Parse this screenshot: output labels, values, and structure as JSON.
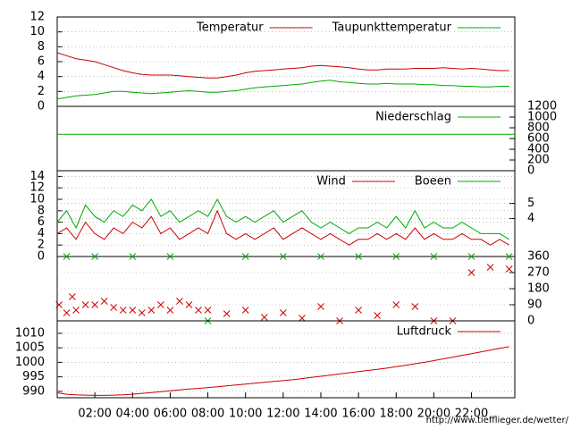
{
  "credit": "http://www.tiefflieger.de/wetter/",
  "chart_data": [
    {
      "type": "line",
      "xlim": [
        0,
        24.3
      ],
      "ylim": [
        0,
        12
      ],
      "yticks": [
        0,
        2,
        4,
        6,
        8,
        10,
        12
      ],
      "grid": true,
      "x": [
        0,
        0.5,
        1,
        1.5,
        2,
        2.5,
        3,
        3.5,
        4,
        4.5,
        5,
        5.5,
        6,
        6.5,
        7,
        7.5,
        8,
        8.5,
        9,
        9.5,
        10,
        10.5,
        11,
        11.5,
        12,
        12.5,
        13,
        13.5,
        14,
        14.5,
        15,
        15.5,
        16,
        16.5,
        17,
        17.5,
        18,
        18.5,
        19,
        19.5,
        20,
        20.5,
        21,
        21.5,
        22,
        22.5,
        23,
        23.5,
        24
      ],
      "series": [
        {
          "name": "Temperatur",
          "color": "#cc0000",
          "values": [
            7.2,
            6.8,
            6.4,
            6.2,
            6.0,
            5.6,
            5.2,
            4.8,
            4.5,
            4.3,
            4.2,
            4.2,
            4.2,
            4.1,
            4.0,
            3.9,
            3.8,
            3.8,
            4.0,
            4.2,
            4.5,
            4.7,
            4.8,
            4.9,
            5.0,
            5.1,
            5.2,
            5.4,
            5.5,
            5.4,
            5.3,
            5.2,
            5.0,
            4.9,
            4.9,
            5.0,
            5.0,
            5.0,
            5.1,
            5.1,
            5.1,
            5.2,
            5.1,
            5.0,
            5.1,
            5.0,
            4.9,
            4.8,
            4.8
          ]
        },
        {
          "name": "Taupunkttemperatur",
          "color": "#00aa00",
          "values": [
            1.0,
            1.2,
            1.4,
            1.5,
            1.6,
            1.8,
            2.0,
            2.0,
            1.9,
            1.8,
            1.7,
            1.8,
            1.9,
            2.0,
            2.1,
            2.0,
            1.9,
            1.9,
            2.0,
            2.1,
            2.3,
            2.5,
            2.6,
            2.7,
            2.8,
            2.9,
            3.0,
            3.2,
            3.4,
            3.5,
            3.3,
            3.2,
            3.1,
            3.0,
            3.0,
            3.1,
            3.0,
            3.0,
            3.0,
            2.9,
            2.9,
            2.8,
            2.8,
            2.7,
            2.7,
            2.6,
            2.6,
            2.7,
            2.7
          ]
        }
      ]
    },
    {
      "type": "line",
      "xlim": [
        0,
        24.3
      ],
      "y2lim": [
        0,
        1200
      ],
      "y2ticks": [
        0,
        200,
        400,
        600,
        800,
        1000,
        1200
      ],
      "x": [
        0,
        24.3
      ],
      "series": [
        {
          "name": "Niederschlag",
          "color": "#00aa00",
          "axis": "y2",
          "values": [
            680,
            680
          ]
        }
      ]
    },
    {
      "type": "line",
      "xlim": [
        0,
        24.3
      ],
      "ylim": [
        0,
        15
      ],
      "yticks": [
        0,
        2,
        4,
        6,
        8,
        10,
        12,
        14
      ],
      "y2lim": [
        1.5,
        7.15
      ],
      "y2ticks": [
        4,
        5
      ],
      "grid": true,
      "x": [
        0,
        0.5,
        1,
        1.5,
        2,
        2.5,
        3,
        3.5,
        4,
        4.5,
        5,
        5.5,
        6,
        6.5,
        7,
        7.5,
        8,
        8.5,
        9,
        9.5,
        10,
        10.5,
        11,
        11.5,
        12,
        12.5,
        13,
        13.5,
        14,
        14.5,
        15,
        15.5,
        16,
        16.5,
        17,
        17.5,
        18,
        18.5,
        19,
        19.5,
        20,
        20.5,
        21,
        21.5,
        22,
        22.5,
        23,
        23.5,
        24
      ],
      "series": [
        {
          "name": "Wind",
          "color": "#cc0000",
          "values": [
            4,
            5,
            3,
            6,
            4,
            3,
            5,
            4,
            6,
            5,
            7,
            4,
            5,
            3,
            4,
            5,
            4,
            8,
            4,
            3,
            4,
            3,
            4,
            5,
            3,
            4,
            5,
            4,
            3,
            4,
            3,
            2,
            3,
            3,
            4,
            3,
            4,
            3,
            5,
            3,
            4,
            3,
            3,
            4,
            3,
            3,
            2,
            3,
            2
          ]
        },
        {
          "name": "Boeen",
          "color": "#00aa00",
          "values": [
            6,
            8,
            5,
            9,
            7,
            6,
            8,
            7,
            9,
            8,
            10,
            7,
            8,
            6,
            7,
            8,
            7,
            10,
            7,
            6,
            7,
            6,
            7,
            8,
            6,
            7,
            8,
            6,
            5,
            6,
            5,
            4,
            5,
            5,
            6,
            5,
            7,
            5,
            8,
            5,
            6,
            5,
            5,
            6,
            5,
            4,
            4,
            4,
            3
          ]
        }
      ]
    },
    {
      "type": "scatter",
      "xlim": [
        0,
        24.3
      ],
      "y2lim": [
        0,
        360
      ],
      "y2ticks": [
        0,
        90,
        180,
        270,
        360
      ],
      "grid": true,
      "series": [
        {
          "color": "#cc0000",
          "x": [
            0.1,
            0.5,
            0.8,
            1.0,
            1.5,
            2.0,
            2.5,
            3.0,
            3.5,
            4.0,
            4.5,
            5.0,
            5.5,
            6.0,
            6.5,
            7.0,
            7.5,
            8.0,
            9.0,
            10.0,
            11.0,
            12.0,
            13.0,
            14.0,
            15.0,
            16.0,
            17.0,
            18.0,
            19.0,
            20.0,
            21.0,
            22.0,
            23.0,
            24.0
          ],
          "values": [
            90,
            45,
            135,
            60,
            90,
            90,
            110,
            75,
            60,
            60,
            45,
            60,
            90,
            60,
            110,
            90,
            60,
            60,
            40,
            60,
            20,
            45,
            15,
            80,
            0,
            60,
            30,
            90,
            80,
            0,
            0,
            270,
            300,
            290
          ]
        },
        {
          "color": "#00aa00",
          "x": [
            0.5,
            2,
            4,
            6,
            8,
            10,
            12,
            14,
            16,
            18,
            20,
            22,
            24
          ],
          "values": [
            360,
            360,
            360,
            360,
            0,
            360,
            360,
            360,
            360,
            360,
            360,
            360,
            360
          ]
        }
      ]
    },
    {
      "type": "line",
      "xlim": [
        0,
        24.3
      ],
      "ylim": [
        987.8,
        1014.3
      ],
      "yticks": [
        990,
        995,
        1000,
        1005,
        1010
      ],
      "grid": true,
      "xticks": [
        {
          "value": 2,
          "label": "02:00"
        },
        {
          "value": 4,
          "label": "04:00"
        },
        {
          "value": 6,
          "label": "06:00"
        },
        {
          "value": 8,
          "label": "08:00"
        },
        {
          "value": 10,
          "label": "10:00"
        },
        {
          "value": 12,
          "label": "12:00"
        },
        {
          "value": 14,
          "label": "14:00"
        },
        {
          "value": 16,
          "label": "16:00"
        },
        {
          "value": 18,
          "label": "18:00"
        },
        {
          "value": 20,
          "label": "20:00"
        },
        {
          "value": 22,
          "label": "22:00"
        }
      ],
      "x": [
        0,
        0.5,
        1,
        1.5,
        2,
        2.5,
        3,
        3.5,
        4,
        4.5,
        5,
        5.5,
        6,
        6.5,
        7,
        7.5,
        8,
        8.5,
        9,
        9.5,
        10,
        10.5,
        11,
        11.5,
        12,
        12.5,
        13,
        13.5,
        14,
        14.5,
        15,
        15.5,
        16,
        16.5,
        17,
        17.5,
        18,
        18.5,
        19,
        19.5,
        20,
        20.5,
        21,
        21.5,
        22,
        22.5,
        23,
        23.5,
        24
      ],
      "series": [
        {
          "name": "Luftdruck",
          "color": "#cc0000",
          "values": [
            989.5,
            989.0,
            988.8,
            988.7,
            988.6,
            988.6,
            988.7,
            988.8,
            989.0,
            989.3,
            989.6,
            989.9,
            990.2,
            990.5,
            990.8,
            991.0,
            991.3,
            991.6,
            991.9,
            992.2,
            992.5,
            992.8,
            993.1,
            993.4,
            993.7,
            994.0,
            994.4,
            994.8,
            995.2,
            995.6,
            996.0,
            996.4,
            996.8,
            997.2,
            997.6,
            998.0,
            998.5,
            999.0,
            999.5,
            1000.0,
            1000.6,
            1001.2,
            1001.8,
            1002.4,
            1003.0,
            1003.6,
            1004.2,
            1004.8,
            1005.4
          ]
        }
      ]
    }
  ]
}
